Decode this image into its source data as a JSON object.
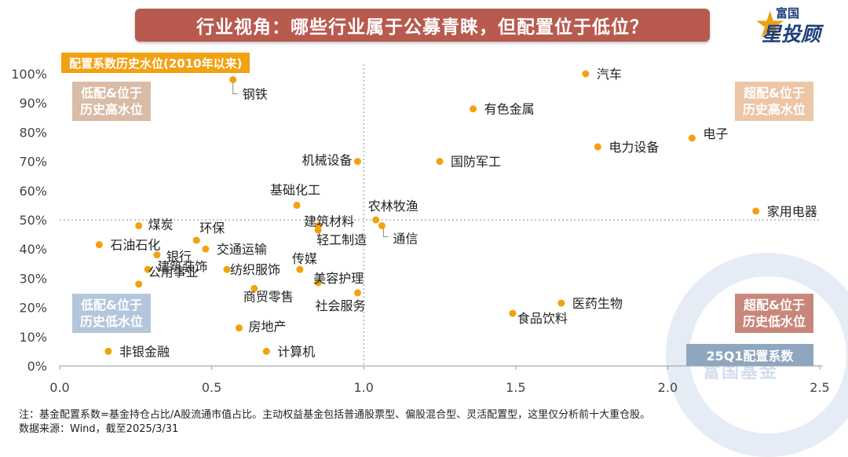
{
  "header": {
    "title": "行业视角：哪些行业属于公募青睐，但配置位于低位？"
  },
  "logo": {
    "brand_top": "富国",
    "brand_main": "星投顾"
  },
  "watermark": {
    "text": "富国基金"
  },
  "annotations": {
    "y_tag": "配置系数历史水位(2010年以来)",
    "x_tag": "25Q1配置系数",
    "quad_tl_line1": "低配&位于",
    "quad_tl_line2": "历史高水位",
    "quad_tr_line1": "超配&位于",
    "quad_tr_line2": "历史高水位",
    "quad_bl_line1": "低配&位于",
    "quad_bl_line2": "历史低水位",
    "quad_br_line1": "超配&位于",
    "quad_br_line2": "历史低水位"
  },
  "footnote": {
    "line1": "注：基金配置系数=基金持仓占比/A股流通市值占比。主动权益基金包括普通股票型、偏股混合型、灵活配置型，这里仅分析前十大重仓股。",
    "line2": "数据来源：Wind，截至2025/3/31"
  },
  "colors": {
    "point": "#f2a111",
    "title_bg": "#b85a4e",
    "tag_bg": "#f2a111"
  },
  "chart_data": {
    "type": "scatter",
    "xlim": [
      0,
      2.5
    ],
    "ylim": [
      0,
      1.0
    ],
    "x_ticks": [
      0.0,
      0.5,
      1.0,
      1.5,
      2.0,
      2.5
    ],
    "x_tick_labels": [
      "0.0",
      "0.5",
      "1.0",
      "1.5",
      "2.0",
      "2.5"
    ],
    "y_ticks": [
      0,
      0.1,
      0.2,
      0.3,
      0.4,
      0.5,
      0.6,
      0.7,
      0.8,
      0.9,
      1.0
    ],
    "y_tick_labels": [
      "0%",
      "10%",
      "20%",
      "30%",
      "40%",
      "50%",
      "60%",
      "70%",
      "80%",
      "90%",
      "100%"
    ],
    "reference_lines": {
      "x": 1.0,
      "y": 0.5
    },
    "points": [
      {
        "name": "钢铁",
        "x": 0.57,
        "y": 0.98
      },
      {
        "name": "汽车",
        "x": 1.73,
        "y": 1.0
      },
      {
        "name": "有色金属",
        "x": 1.36,
        "y": 0.88
      },
      {
        "name": "电子",
        "x": 2.08,
        "y": 0.78
      },
      {
        "name": "电力设备",
        "x": 1.77,
        "y": 0.75
      },
      {
        "name": "机械设备",
        "x": 0.98,
        "y": 0.7
      },
      {
        "name": "国防军工",
        "x": 1.25,
        "y": 0.7
      },
      {
        "name": "基础化工",
        "x": 0.78,
        "y": 0.55
      },
      {
        "name": "建筑材料",
        "x": 0.85,
        "y": 0.48
      },
      {
        "name": "农林牧渔",
        "x": 1.04,
        "y": 0.5
      },
      {
        "name": "家用电器",
        "x": 2.29,
        "y": 0.53
      },
      {
        "name": "通信",
        "x": 1.06,
        "y": 0.48
      },
      {
        "name": "轻工制造",
        "x": 0.85,
        "y": 0.465
      },
      {
        "name": "煤炭",
        "x": 0.26,
        "y": 0.48
      },
      {
        "name": "环保",
        "x": 0.45,
        "y": 0.43
      },
      {
        "name": "石油石化",
        "x": 0.13,
        "y": 0.415
      },
      {
        "name": "交通运输",
        "x": 0.48,
        "y": 0.4
      },
      {
        "name": "银行",
        "x": 0.32,
        "y": 0.38
      },
      {
        "name": "建筑装饰",
        "x": 0.29,
        "y": 0.33
      },
      {
        "name": "纺织服饰",
        "x": 0.55,
        "y": 0.33
      },
      {
        "name": "传媒",
        "x": 0.79,
        "y": 0.33
      },
      {
        "name": "公用事业",
        "x": 0.26,
        "y": 0.28
      },
      {
        "name": "美容护理",
        "x": 0.85,
        "y": 0.285
      },
      {
        "name": "商贸零售",
        "x": 0.64,
        "y": 0.265
      },
      {
        "name": "社会服务",
        "x": 0.98,
        "y": 0.25
      },
      {
        "name": "医药生物",
        "x": 1.65,
        "y": 0.215
      },
      {
        "name": "食品饮料",
        "x": 1.49,
        "y": 0.18
      },
      {
        "name": "房地产",
        "x": 0.59,
        "y": 0.13
      },
      {
        "name": "非银金融",
        "x": 0.16,
        "y": 0.05
      },
      {
        "name": "计算机",
        "x": 0.68,
        "y": 0.05
      }
    ]
  }
}
